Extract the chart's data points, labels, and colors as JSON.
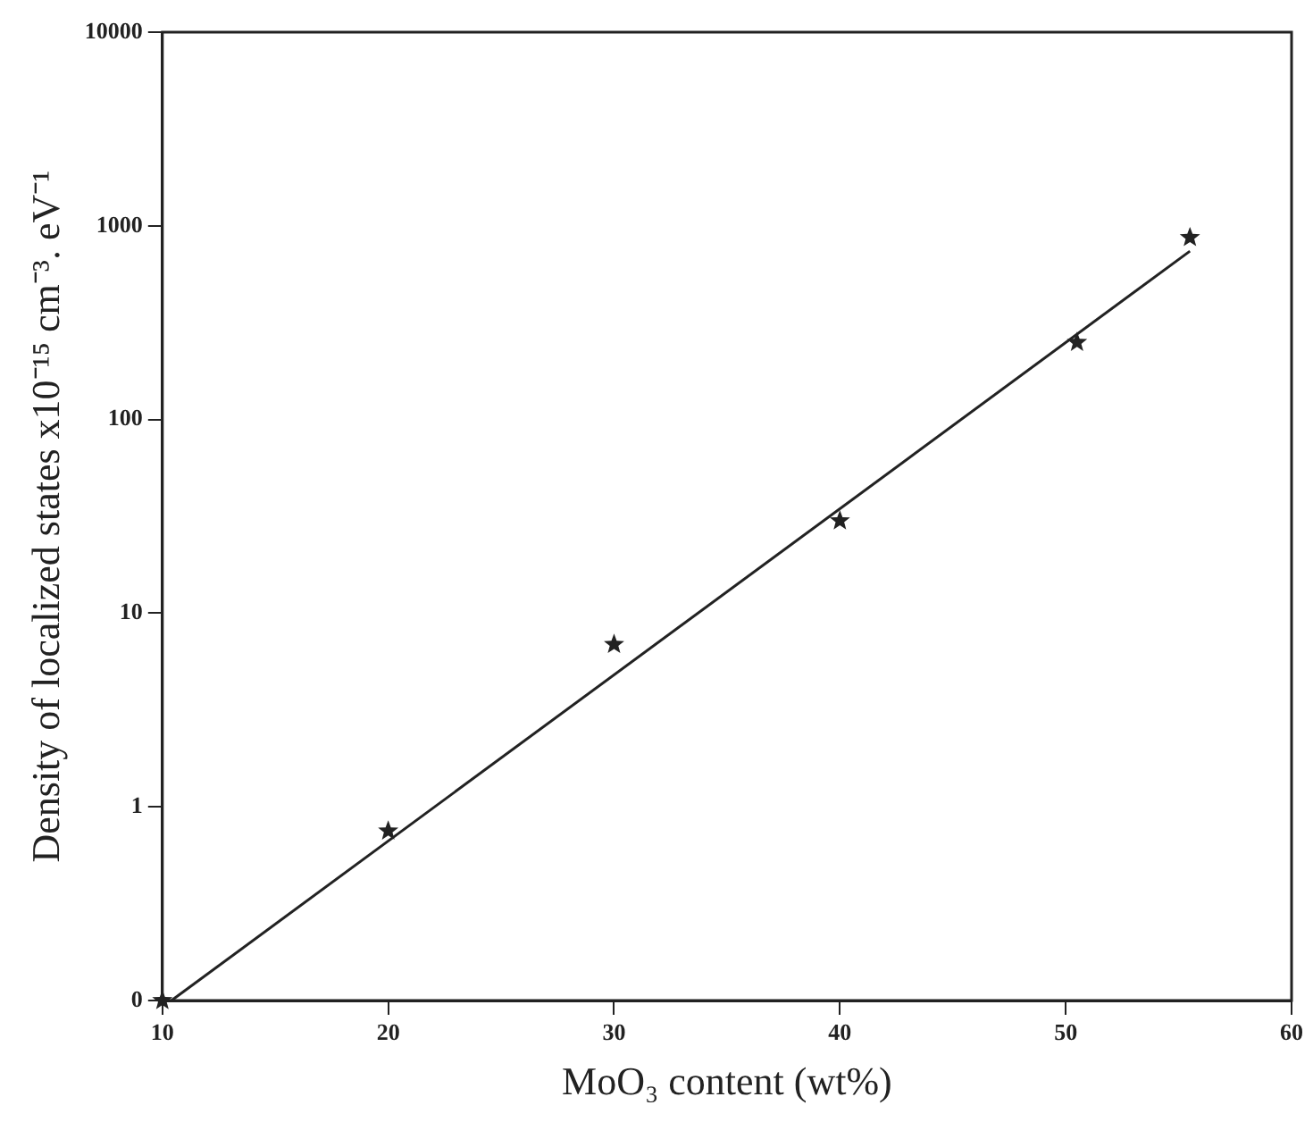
{
  "chart_data": {
    "type": "scatter",
    "xlabel": "MoO₃ content (wt%)",
    "ylabel": "Density of localized states x10⁻¹⁵ cm⁻³. eV⁻¹",
    "log": "y",
    "grid": false,
    "legend": false,
    "marker": "star",
    "xlim": [
      10,
      60
    ],
    "xticks": [
      10,
      20,
      30,
      40,
      50,
      60
    ],
    "ylim": [
      0.1,
      10000
    ],
    "yticks": [
      {
        "value": 0.1,
        "label": "0"
      },
      1,
      10,
      100,
      1000,
      10000
    ],
    "series": [
      {
        "type": "scatter",
        "color": "#222222",
        "x": [
          10,
          20,
          30,
          40,
          50.5,
          55.5
        ],
        "values": [
          0.1,
          0.75,
          6.9,
          30,
          250,
          870
        ]
      },
      {
        "type": "line",
        "color": "#222222",
        "x": [
          10.4,
          55.5
        ],
        "values": [
          0.1,
          740
        ],
        "marker": "none",
        "line_style": "solid"
      }
    ]
  }
}
